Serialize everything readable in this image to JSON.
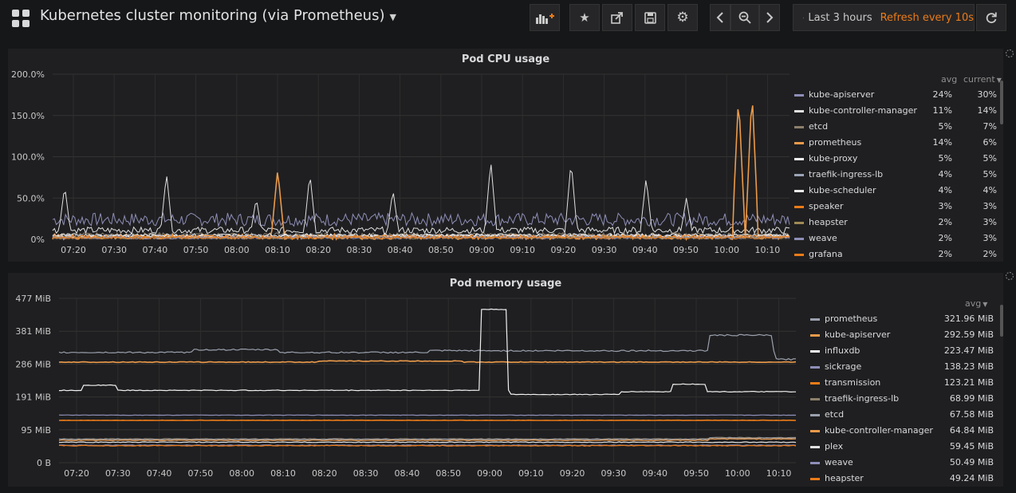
{
  "header": {
    "title": "Kubernetes cluster monitoring (via Prometheus)",
    "time_range": "Last 3 hours",
    "refresh": "Refresh every 10s",
    "buttons": [
      "add-panel-icon",
      "star-icon",
      "share-icon",
      "save-icon",
      "gear-icon",
      "chevron-left-icon",
      "zoom-out-icon",
      "chevron-right-icon",
      "refresh-icon"
    ]
  },
  "colors": {
    "bg": "#161719",
    "panel": "#1f1f21",
    "orange": "#eb7b18",
    "gray": "#9aa0ad",
    "lavender": "#8e8eb8",
    "light": "#e0e0e0"
  },
  "x_ticks": [
    "07:20",
    "07:30",
    "07:40",
    "07:50",
    "08:00",
    "08:10",
    "08:20",
    "08:30",
    "08:40",
    "08:50",
    "09:00",
    "09:10",
    "09:20",
    "09:30",
    "09:40",
    "09:50",
    "10:00",
    "10:10"
  ],
  "cpu": {
    "title": "Pod CPU usage",
    "legend_cols": [
      "avg",
      "current"
    ],
    "y_ticks": [
      "200.0%",
      "150.0%",
      "100.0%",
      "50.0%",
      "0%"
    ],
    "items": [
      {
        "name": "kube-apiserver",
        "avg": "24%",
        "current": "30%",
        "color": "#8e8eb8"
      },
      {
        "name": "kube-controller-manager",
        "avg": "11%",
        "current": "14%",
        "color": "#e0e0e0"
      },
      {
        "name": "etcd",
        "avg": "5%",
        "current": "7%",
        "color": "#8c7f6a"
      },
      {
        "name": "prometheus",
        "avg": "14%",
        "current": "6%",
        "color": "#eb9a4a"
      },
      {
        "name": "kube-proxy",
        "avg": "5%",
        "current": "5%",
        "color": "#f0f0f0"
      },
      {
        "name": "traefik-ingress-lb",
        "avg": "4%",
        "current": "5%",
        "color": "#9aa4b8"
      },
      {
        "name": "kube-scheduler",
        "avg": "4%",
        "current": "4%",
        "color": "#e8e8e8"
      },
      {
        "name": "speaker",
        "avg": "3%",
        "current": "3%",
        "color": "#eb7b18"
      },
      {
        "name": "heapster",
        "avg": "2%",
        "current": "3%",
        "color": "#a08a55"
      },
      {
        "name": "weave",
        "avg": "2%",
        "current": "3%",
        "color": "#8e8eb8"
      },
      {
        "name": "grafana",
        "avg": "2%",
        "current": "2%",
        "color": "#eb7b18"
      }
    ]
  },
  "memory": {
    "title": "Pod memory usage",
    "legend_cols": [
      "avg"
    ],
    "y_ticks": [
      "477 MiB",
      "381 MiB",
      "286 MiB",
      "191 MiB",
      "95 MiB",
      "0 B"
    ],
    "items": [
      {
        "name": "prometheus",
        "avg": "321.96 MiB",
        "color": "#9aa0ad"
      },
      {
        "name": "kube-apiserver",
        "avg": "292.59 MiB",
        "color": "#eb9a4a"
      },
      {
        "name": "influxdb",
        "avg": "223.47 MiB",
        "color": "#f0f0f0"
      },
      {
        "name": "sickrage",
        "avg": "138.23 MiB",
        "color": "#8e8eb8"
      },
      {
        "name": "transmission",
        "avg": "123.21 MiB",
        "color": "#eb7b18"
      },
      {
        "name": "traefik-ingress-lb",
        "avg": "68.99 MiB",
        "color": "#8c7f6a"
      },
      {
        "name": "etcd",
        "avg": "67.58 MiB",
        "color": "#9aa0ad"
      },
      {
        "name": "kube-controller-manager",
        "avg": "64.84 MiB",
        "color": "#eb9a4a"
      },
      {
        "name": "plex",
        "avg": "59.45 MiB",
        "color": "#e0e0e0"
      },
      {
        "name": "weave",
        "avg": "50.49 MiB",
        "color": "#8e8eb8"
      },
      {
        "name": "heapster",
        "avg": "49.24 MiB",
        "color": "#eb7b18"
      }
    ]
  }
}
